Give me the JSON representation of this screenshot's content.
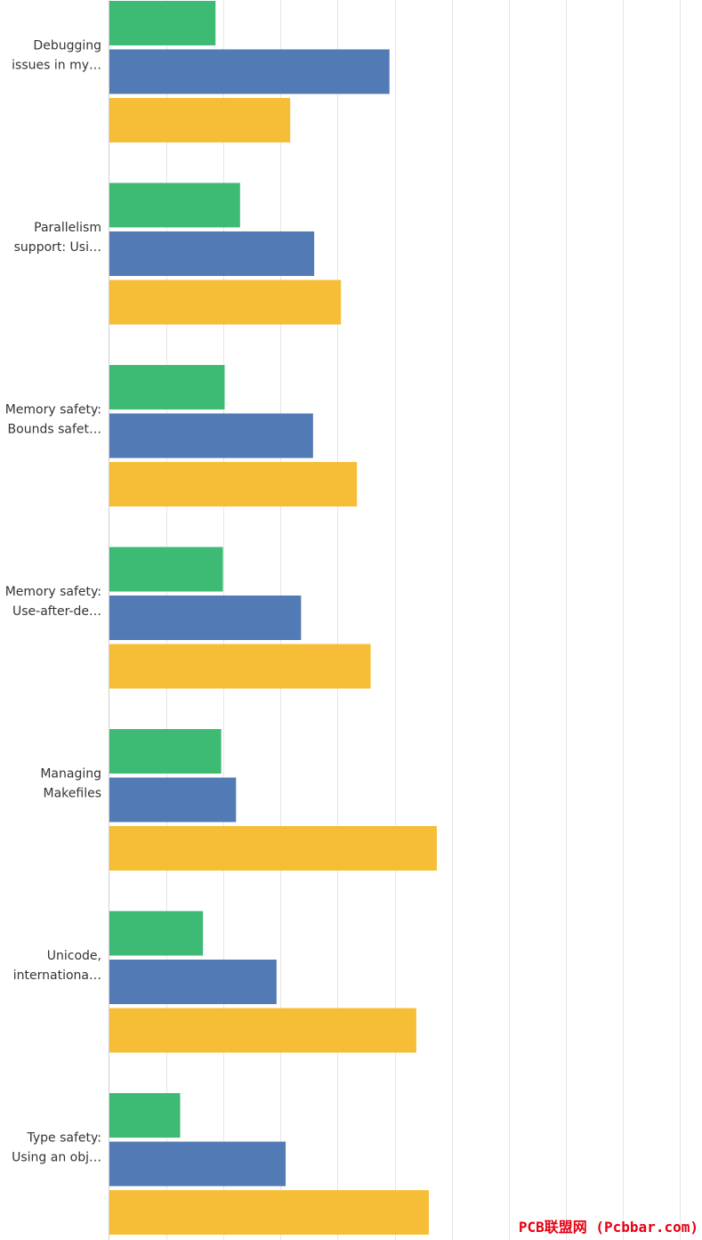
{
  "chart_data": {
    "type": "bar",
    "orientation": "horizontal",
    "grid": true,
    "title": "",
    "xlabel": "",
    "ylabel": "",
    "categories": [
      [
        "Debugging",
        "issues in my…"
      ],
      [
        "Parallelism",
        "support: Usi…"
      ],
      [
        "Memory safety:",
        "Bounds safet…"
      ],
      [
        "Memory safety:",
        "Use-after-de…"
      ],
      [
        "Managing",
        "Makefiles"
      ],
      [
        "Unicode,",
        "internationa…"
      ],
      [
        "Type safety:",
        "Using an obj…"
      ]
    ],
    "series": [
      {
        "color": "#3dbb74",
        "values": [
          18.6,
          22.9,
          20.2,
          19.9,
          19.6,
          16.4,
          12.4
        ]
      },
      {
        "color": "#527ab5",
        "values": [
          49.1,
          35.9,
          35.7,
          33.6,
          22.2,
          29.3,
          30.9
        ]
      },
      {
        "color": "#f6be36",
        "values": [
          31.7,
          40.6,
          43.4,
          45.8,
          57.4,
          53.8,
          56.0
        ]
      }
    ],
    "xlim": [
      0,
      100
    ],
    "grid_step": 10,
    "colors": {
      "grid": "#e6e6e6",
      "axis": "#cfcfcf",
      "text": "#333333"
    }
  },
  "watermark": {
    "text": "PCB联盟网 (Pcbbar.com)",
    "color": "#e60012"
  }
}
